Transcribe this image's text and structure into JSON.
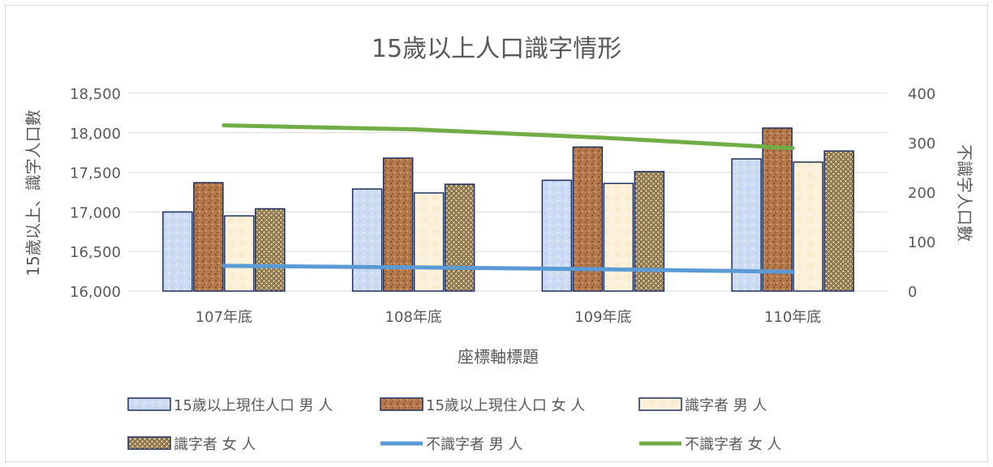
{
  "chart_data": {
    "type": "bar",
    "title": "15歲以上人口識字情形",
    "xlabel": "座標軸標題",
    "ylabel": "15歲以上、識字人口數",
    "y2label": "不識字人口數",
    "categories": [
      "107年底",
      "108年底",
      "109年底",
      "110年底"
    ],
    "ylim": [
      16000,
      18500
    ],
    "yticks": [
      "16,000",
      "16,500",
      "17,000",
      "17,500",
      "18,000",
      "18,500"
    ],
    "y2lim": [
      0,
      400
    ],
    "y2ticks": [
      "0",
      "100",
      "200",
      "300",
      "400"
    ],
    "grid": true,
    "legend_position": "bottom",
    "series": [
      {
        "name": "15歲以上現住人口 男 人",
        "type": "bar",
        "axis": "left",
        "color": "#c9d9f2",
        "pattern": "light-blue-texture",
        "values": [
          17000,
          17290,
          17400,
          17670
        ]
      },
      {
        "name": "15歲以上現住人口 女 人",
        "type": "bar",
        "axis": "left",
        "color": "#b87a4b",
        "pattern": "cork-texture",
        "values": [
          17370,
          17680,
          17820,
          18060
        ]
      },
      {
        "name": "識字者 男 人",
        "type": "bar",
        "axis": "left",
        "color": "#fbf1da",
        "pattern": "parchment-texture",
        "values": [
          16950,
          17240,
          17360,
          17630
        ]
      },
      {
        "name": "識字者 女 人",
        "type": "bar",
        "axis": "left",
        "color": "#a3895e",
        "pattern": "woven-texture",
        "values": [
          17040,
          17350,
          17510,
          17770
        ]
      },
      {
        "name": "不識字者 男 人",
        "type": "line",
        "axis": "right",
        "color": "#5b9bd5",
        "values": [
          51,
          48,
          44,
          39
        ]
      },
      {
        "name": "不識字者 女 人",
        "type": "line",
        "axis": "right",
        "color": "#70ad47",
        "values": [
          335,
          327,
          310,
          289
        ]
      }
    ]
  }
}
